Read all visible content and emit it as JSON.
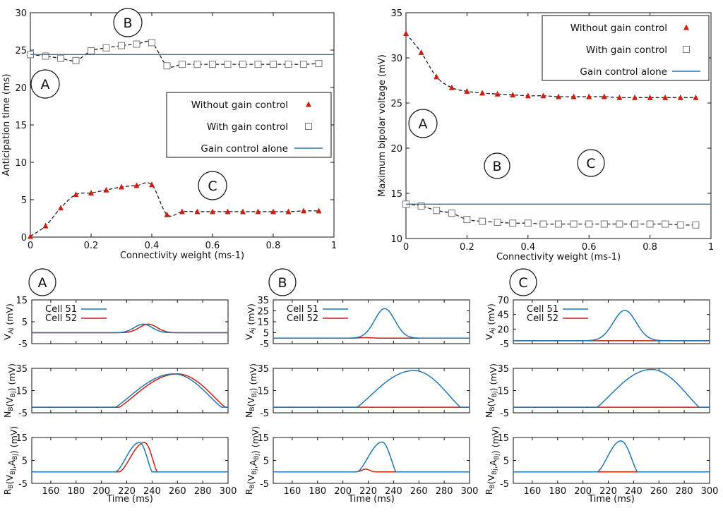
{
  "colors": {
    "red": "#cc1f10",
    "blue": "#1f77b4",
    "black": "#111111",
    "dashed": "#222222",
    "gray": "#777777"
  },
  "chart_data": [
    {
      "type": "scatter",
      "panel": "top-left",
      "xlabel": "Connectivity weight (ms-1)",
      "ylabel": "Anticipation time (ms)",
      "xlim": [
        0,
        1
      ],
      "ylim": [
        0,
        30
      ],
      "xticks": [
        "0",
        "0.2",
        "0.4",
        "0.6",
        "0.8",
        "1"
      ],
      "yticks": [
        "0",
        "5",
        "10",
        "15",
        "20",
        "25",
        "30"
      ],
      "legend": {
        "position": "center-right",
        "entries": [
          "Without gain control",
          "With gain control",
          "Gain control alone"
        ]
      },
      "letters": [
        "A",
        "B",
        "C"
      ],
      "x": [
        0,
        0.05,
        0.1,
        0.15,
        0.2,
        0.25,
        0.3,
        0.35,
        0.4,
        0.45,
        0.5,
        0.55,
        0.6,
        0.65,
        0.7,
        0.75,
        0.8,
        0.85,
        0.9,
        0.95
      ],
      "series": [
        {
          "name": "Without gain control",
          "marker": "triangle",
          "values": [
            0.1,
            1.5,
            3.9,
            5.7,
            5.9,
            6.3,
            6.7,
            6.9,
            7.0,
            3.0,
            3.4,
            3.4,
            3.4,
            3.4,
            3.4,
            3.4,
            3.4,
            3.4,
            3.5,
            3.5
          ]
        },
        {
          "name": "With gain control",
          "marker": "square",
          "values": [
            24.4,
            24.2,
            23.9,
            23.6,
            24.9,
            25.3,
            25.6,
            25.8,
            26.0,
            22.9,
            23.1,
            23.1,
            23.1,
            23.1,
            23.1,
            23.1,
            23.1,
            23.1,
            23.1,
            23.2
          ]
        },
        {
          "name": "Gain control alone",
          "marker": "line",
          "constant": 24.4
        }
      ]
    },
    {
      "type": "scatter",
      "panel": "top-right",
      "xlabel": "Connectivity weight (ms-1)",
      "ylabel": "Maximum bipolar voltage (mV)",
      "xlim": [
        0,
        1
      ],
      "ylim": [
        10,
        35
      ],
      "xticks": [
        "0",
        "0.2",
        "0.4",
        "0.6",
        "0.8",
        "1"
      ],
      "yticks": [
        "10",
        "15",
        "20",
        "25",
        "30",
        "35"
      ],
      "legend": {
        "position": "top-right",
        "entries": [
          "Without gain control",
          "With gain control",
          "Gain control alone"
        ]
      },
      "letters": [
        "A",
        "B",
        "C"
      ],
      "x": [
        0,
        0.05,
        0.1,
        0.15,
        0.2,
        0.25,
        0.3,
        0.35,
        0.4,
        0.45,
        0.5,
        0.55,
        0.6,
        0.65,
        0.7,
        0.75,
        0.8,
        0.85,
        0.9,
        0.95
      ],
      "series": [
        {
          "name": "Without gain control",
          "marker": "triangle",
          "values": [
            32.7,
            30.6,
            27.9,
            26.7,
            26.3,
            26.1,
            26.0,
            25.9,
            25.8,
            25.8,
            25.7,
            25.7,
            25.7,
            25.7,
            25.6,
            25.6,
            25.6,
            25.6,
            25.6,
            25.6
          ]
        },
        {
          "name": "With gain control",
          "marker": "square",
          "values": [
            13.8,
            13.6,
            13.1,
            12.8,
            12.1,
            11.9,
            11.8,
            11.7,
            11.7,
            11.6,
            11.6,
            11.6,
            11.6,
            11.6,
            11.6,
            11.6,
            11.6,
            11.6,
            11.5,
            11.5
          ]
        },
        {
          "name": "Gain control alone",
          "marker": "line",
          "constant": 13.8
        }
      ]
    },
    {
      "type": "line",
      "panel": "bottom-A",
      "letter": "A",
      "xlabel": "Time (ms)",
      "xlim": [
        145,
        300
      ],
      "xticks": [
        "160",
        "180",
        "200",
        "220",
        "240",
        "260",
        "280",
        "300"
      ],
      "legend": {
        "position": "top-left",
        "entries": [
          "Cell 51",
          "Cell 52"
        ]
      },
      "rows": [
        {
          "ylabel": "V_Aj (mV)",
          "ylim": [
            -5,
            15
          ],
          "yticks": [
            "-5",
            "5",
            "15"
          ],
          "series": [
            {
              "name": "Cell 51",
              "shape": "gauss",
              "base": 0,
              "peak": 3.9,
              "center": 233,
              "sigma": 7
            },
            {
              "name": "Cell 52",
              "shape": "gauss",
              "base": 0,
              "peak": 3.9,
              "center": 237,
              "sigma": 7
            }
          ]
        },
        {
          "ylabel": "N_B(V_Bj) (mV)",
          "ylim": [
            -5,
            35
          ],
          "yticks": [
            "-5",
            "15",
            "35"
          ],
          "series": [
            {
              "name": "Cell 51",
              "shape": "hump",
              "base": 0,
              "peak": 30,
              "start": 211,
              "top": 257,
              "end": 295
            },
            {
              "name": "Cell 52",
              "shape": "hump",
              "base": 0,
              "peak": 30,
              "start": 214,
              "top": 260,
              "end": 298
            }
          ]
        },
        {
          "ylabel": "R_B(V_Bj,A_Bj) (mV)",
          "ylim": [
            -5,
            15
          ],
          "yticks": [
            "-5",
            "5",
            "15"
          ],
          "series": [
            {
              "name": "Cell 51",
              "shape": "spike",
              "base": 0,
              "peak": 12.8,
              "start": 211,
              "top": 230,
              "end": 240
            },
            {
              "name": "Cell 52",
              "shape": "spike",
              "base": 0,
              "peak": 12.8,
              "start": 214,
              "top": 234,
              "end": 244
            }
          ]
        }
      ]
    },
    {
      "type": "line",
      "panel": "bottom-B",
      "letter": "B",
      "xlabel": "Time (ms)",
      "xlim": [
        145,
        300
      ],
      "xticks": [
        "160",
        "180",
        "200",
        "220",
        "240",
        "260",
        "280",
        "300"
      ],
      "legend": {
        "position": "top-left",
        "entries": [
          "Cell 51",
          "Cell 52"
        ]
      },
      "rows": [
        {
          "ylabel": "V_Aj (mV)",
          "ylim": [
            -5,
            35
          ],
          "yticks": [
            "-5",
            "5",
            "15",
            "25",
            "35"
          ],
          "series": [
            {
              "name": "Cell 51",
              "shape": "gauss",
              "base": 0,
              "peak": 27,
              "center": 233,
              "sigma": 8
            },
            {
              "name": "Cell 52",
              "shape": "gauss",
              "base": 0,
              "peak": 0.5,
              "center": 218,
              "sigma": 5
            }
          ]
        },
        {
          "ylabel": "N_B(V_Bj) (mV)",
          "ylim": [
            -5,
            35
          ],
          "yticks": [
            "-5",
            "15",
            "35"
          ],
          "series": [
            {
              "name": "Cell 51",
              "shape": "hump",
              "base": 0,
              "peak": 33,
              "start": 211,
              "top": 256,
              "end": 293
            },
            {
              "name": "Cell 52",
              "shape": "flat",
              "base": 0
            }
          ]
        },
        {
          "ylabel": "R_B(V_Bj,A_Bj) (mV)",
          "ylim": [
            -5,
            15
          ],
          "yticks": [
            "-5",
            "5",
            "15"
          ],
          "series": [
            {
              "name": "Cell 51",
              "shape": "spike",
              "base": 0,
              "peak": 13,
              "start": 211,
              "top": 231,
              "end": 242
            },
            {
              "name": "Cell 52",
              "shape": "gauss",
              "base": 0,
              "peak": 1.2,
              "center": 218,
              "sigma": 3
            }
          ]
        }
      ]
    },
    {
      "type": "line",
      "panel": "bottom-C",
      "letter": "C",
      "xlabel": "Time (ms)",
      "xlim": [
        145,
        300
      ],
      "xticks": [
        "160",
        "180",
        "200",
        "220",
        "240",
        "260",
        "280",
        "300"
      ],
      "legend": {
        "position": "top-left",
        "entries": [
          "Cell 51",
          "Cell 52"
        ]
      },
      "rows": [
        {
          "ylabel": "V_Aj (mV)",
          "ylim": [
            -5,
            70
          ],
          "yticks": [
            "-5",
            "20",
            "45",
            "70"
          ],
          "series": [
            {
              "name": "Cell 51",
              "shape": "gauss",
              "base": 0,
              "peak": 52,
              "center": 233,
              "sigma": 9
            },
            {
              "name": "Cell 52",
              "shape": "flat",
              "base": 0
            }
          ]
        },
        {
          "ylabel": "N_B(V_Bj) (mV)",
          "ylim": [
            -5,
            35
          ],
          "yticks": [
            "-5",
            "15",
            "35"
          ],
          "series": [
            {
              "name": "Cell 51",
              "shape": "hump",
              "base": 0,
              "peak": 34,
              "start": 211,
              "top": 254,
              "end": 292
            },
            {
              "name": "Cell 52",
              "shape": "flat",
              "base": 0
            }
          ]
        },
        {
          "ylabel": "R_B(V_Bj,A_Bj) (mV)",
          "ylim": [
            -5,
            15
          ],
          "yticks": [
            "-5",
            "5",
            "15"
          ],
          "series": [
            {
              "name": "Cell 51",
              "shape": "spike",
              "base": 0,
              "peak": 13.5,
              "start": 211,
              "top": 230,
              "end": 243
            },
            {
              "name": "Cell 52",
              "shape": "flat",
              "base": 0
            }
          ]
        }
      ]
    }
  ]
}
